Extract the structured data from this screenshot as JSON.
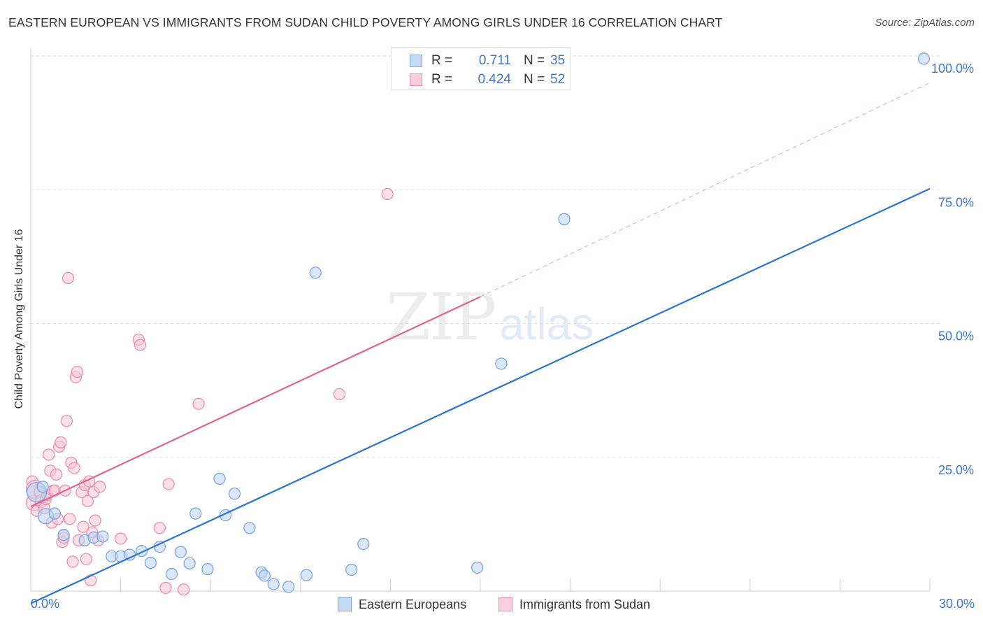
{
  "title": "EASTERN EUROPEAN VS IMMIGRANTS FROM SUDAN CHILD POVERTY AMONG GIRLS UNDER 16 CORRELATION CHART",
  "source": "Source: ZipAtlas.com",
  "watermark": {
    "part1": "ZIP",
    "part2": "atlas"
  },
  "legend_top": {
    "rows": [
      {
        "r_label": "R =",
        "r_value": "0.711",
        "n_label": "N =",
        "n_value": "35"
      },
      {
        "r_label": "R =",
        "r_value": "0.424",
        "n_label": "N =",
        "n_value": "52"
      }
    ]
  },
  "legend_bottom": [
    "Eastern Europeans",
    "Immigrants from Sudan"
  ],
  "colors": {
    "blue_fill": "#b9d3f3",
    "blue_stroke": "#7aa6dd",
    "blue_line": "#2b74d3",
    "pink_fill": "#f8c6d6",
    "pink_stroke": "#ea8fae",
    "pink_line": "#e2638d",
    "grid": "#dddddd",
    "tick_label": "#3a78d4"
  },
  "chart_data": {
    "type": "scatter",
    "title": "EASTERN EUROPEAN VS IMMIGRANTS FROM SUDAN CHILD POVERTY AMONG GIRLS UNDER 16 CORRELATION CHART",
    "xlabel": "",
    "ylabel": "Child Poverty Among Girls Under 16",
    "xlim": [
      0,
      30
    ],
    "ylim": [
      0,
      100
    ],
    "x_tick_labels": [
      "0.0%",
      "30.0%"
    ],
    "y_ticks": [
      25,
      50,
      75,
      100
    ],
    "y_tick_labels": [
      "25.0%",
      "50.0%",
      "75.0%",
      "100.0%"
    ],
    "grid": true,
    "series": [
      {
        "name": "Eastern Europeans",
        "r": 0.711,
        "n": 35,
        "trend": {
          "x0": 0,
          "y0": -2.3,
          "x1": 30,
          "y1": 75.2,
          "dashed_extension": false
        },
        "points": [
          {
            "x": 0.2,
            "y": 18.5,
            "size": 14
          },
          {
            "x": 0.4,
            "y": 19.5,
            "size": 8
          },
          {
            "x": 0.5,
            "y": 14.0,
            "size": 11
          },
          {
            "x": 0.8,
            "y": 14.5,
            "size": 8
          },
          {
            "x": 1.1,
            "y": 10.5,
            "size": 8
          },
          {
            "x": 1.8,
            "y": 9.5,
            "size": 8
          },
          {
            "x": 2.1,
            "y": 10.0,
            "size": 8
          },
          {
            "x": 2.4,
            "y": 10.2,
            "size": 8
          },
          {
            "x": 2.7,
            "y": 6.5,
            "size": 8
          },
          {
            "x": 3.0,
            "y": 6.5,
            "size": 8
          },
          {
            "x": 3.3,
            "y": 6.8,
            "size": 8
          },
          {
            "x": 3.7,
            "y": 7.5,
            "size": 8
          },
          {
            "x": 4.0,
            "y": 5.3,
            "size": 8
          },
          {
            "x": 4.3,
            "y": 8.3,
            "size": 8
          },
          {
            "x": 4.7,
            "y": 3.2,
            "size": 8
          },
          {
            "x": 5.0,
            "y": 7.3,
            "size": 8
          },
          {
            "x": 5.3,
            "y": 5.2,
            "size": 8
          },
          {
            "x": 5.5,
            "y": 14.5,
            "size": 8
          },
          {
            "x": 5.9,
            "y": 4.1,
            "size": 8
          },
          {
            "x": 6.3,
            "y": 21.0,
            "size": 8
          },
          {
            "x": 6.5,
            "y": 14.2,
            "size": 8
          },
          {
            "x": 6.8,
            "y": 18.2,
            "size": 8
          },
          {
            "x": 7.3,
            "y": 11.8,
            "size": 8
          },
          {
            "x": 7.7,
            "y": 3.5,
            "size": 8
          },
          {
            "x": 7.8,
            "y": 2.9,
            "size": 8
          },
          {
            "x": 8.1,
            "y": 1.3,
            "size": 8
          },
          {
            "x": 8.6,
            "y": 0.8,
            "size": 8
          },
          {
            "x": 9.2,
            "y": 3.0,
            "size": 8
          },
          {
            "x": 9.5,
            "y": 59.5,
            "size": 8
          },
          {
            "x": 10.7,
            "y": 4.0,
            "size": 8
          },
          {
            "x": 11.1,
            "y": 8.8,
            "size": 8
          },
          {
            "x": 14.9,
            "y": 4.4,
            "size": 8
          },
          {
            "x": 15.7,
            "y": 42.5,
            "size": 8
          },
          {
            "x": 17.8,
            "y": 69.5,
            "size": 8
          },
          {
            "x": 29.8,
            "y": 99.5,
            "size": 8
          }
        ]
      },
      {
        "name": "Immigrants from Sudan",
        "r": 0.424,
        "n": 52,
        "trend": {
          "x0": 0,
          "y0": 15.8,
          "x1": 15,
          "y1": 55.0,
          "dashed_extension": true,
          "dash_x1": 30,
          "dash_y1": 95.0
        },
        "points": [
          {
            "x": 0.05,
            "y": 20.5,
            "size": 8
          },
          {
            "x": 0.1,
            "y": 16.5,
            "size": 11
          },
          {
            "x": 0.15,
            "y": 19.0,
            "size": 13
          },
          {
            "x": 0.2,
            "y": 15.0,
            "size": 8
          },
          {
            "x": 0.3,
            "y": 18.5,
            "size": 8
          },
          {
            "x": 0.35,
            "y": 16.8,
            "size": 9
          },
          {
            "x": 0.45,
            "y": 15.5,
            "size": 8
          },
          {
            "x": 0.5,
            "y": 17.2,
            "size": 8
          },
          {
            "x": 0.55,
            "y": 18.0,
            "size": 8
          },
          {
            "x": 0.6,
            "y": 25.5,
            "size": 8
          },
          {
            "x": 0.65,
            "y": 22.5,
            "size": 8
          },
          {
            "x": 0.7,
            "y": 12.8,
            "size": 8
          },
          {
            "x": 0.75,
            "y": 18.8,
            "size": 8
          },
          {
            "x": 0.8,
            "y": 18.8,
            "size": 8
          },
          {
            "x": 0.85,
            "y": 21.8,
            "size": 8
          },
          {
            "x": 0.9,
            "y": 13.5,
            "size": 8
          },
          {
            "x": 0.95,
            "y": 27.0,
            "size": 8
          },
          {
            "x": 1.0,
            "y": 27.8,
            "size": 8
          },
          {
            "x": 1.05,
            "y": 9.2,
            "size": 8
          },
          {
            "x": 1.1,
            "y": 10.0,
            "size": 8
          },
          {
            "x": 1.15,
            "y": 18.8,
            "size": 8
          },
          {
            "x": 1.2,
            "y": 31.8,
            "size": 8
          },
          {
            "x": 1.25,
            "y": 58.5,
            "size": 8
          },
          {
            "x": 1.3,
            "y": 13.5,
            "size": 8
          },
          {
            "x": 1.35,
            "y": 24.0,
            "size": 8
          },
          {
            "x": 1.4,
            "y": 5.5,
            "size": 8
          },
          {
            "x": 1.45,
            "y": 23.0,
            "size": 8
          },
          {
            "x": 1.5,
            "y": 40.0,
            "size": 8
          },
          {
            "x": 1.55,
            "y": 41.0,
            "size": 8
          },
          {
            "x": 1.6,
            "y": 9.5,
            "size": 8
          },
          {
            "x": 1.7,
            "y": 18.5,
            "size": 8
          },
          {
            "x": 1.75,
            "y": 12.0,
            "size": 8
          },
          {
            "x": 1.8,
            "y": 19.8,
            "size": 8
          },
          {
            "x": 1.85,
            "y": 6.0,
            "size": 8
          },
          {
            "x": 1.9,
            "y": 16.8,
            "size": 8
          },
          {
            "x": 1.95,
            "y": 20.5,
            "size": 8
          },
          {
            "x": 2.0,
            "y": 2.0,
            "size": 8
          },
          {
            "x": 2.05,
            "y": 11.0,
            "size": 8
          },
          {
            "x": 2.1,
            "y": 18.5,
            "size": 8
          },
          {
            "x": 2.15,
            "y": 13.2,
            "size": 8
          },
          {
            "x": 2.25,
            "y": 9.5,
            "size": 8
          },
          {
            "x": 2.3,
            "y": 19.5,
            "size": 8
          },
          {
            "x": 3.0,
            "y": 9.8,
            "size": 8
          },
          {
            "x": 3.6,
            "y": 47.0,
            "size": 8
          },
          {
            "x": 3.65,
            "y": 46.0,
            "size": 8
          },
          {
            "x": 4.3,
            "y": 11.8,
            "size": 8
          },
          {
            "x": 4.6,
            "y": 20.0,
            "size": 8
          },
          {
            "x": 4.5,
            "y": 0.6,
            "size": 8
          },
          {
            "x": 5.1,
            "y": 0.3,
            "size": 8
          },
          {
            "x": 5.6,
            "y": 35.0,
            "size": 8
          },
          {
            "x": 10.3,
            "y": 36.8,
            "size": 8
          },
          {
            "x": 11.9,
            "y": 74.2,
            "size": 8
          }
        ]
      }
    ]
  }
}
